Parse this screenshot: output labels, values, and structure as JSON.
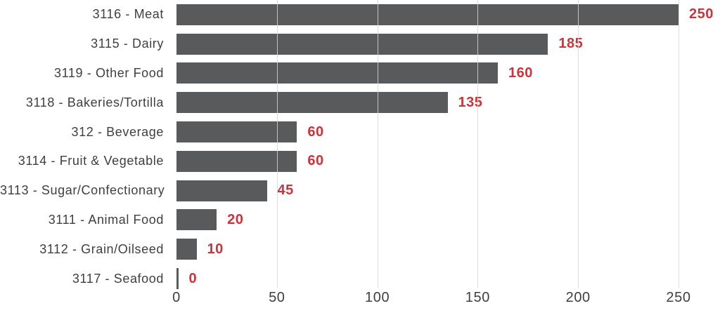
{
  "colors": {
    "background": "#ffffff",
    "bar": "#595a5c",
    "value_label": "#cb343b",
    "category_label": "#3e3f41",
    "tick_label": "#3e3f41",
    "gridline": "#d6d6d6"
  },
  "chart_data": {
    "type": "bar",
    "orientation": "horizontal",
    "title": "",
    "xlabel": "",
    "ylabel": "",
    "categories": [
      "3116 - Meat",
      "3115 - Dairy",
      "3119 - Other Food",
      "3118 - Bakeries/Tortilla",
      "312 - Beverage",
      "3114 - Fruit & Vegetable",
      "3113 - Sugar/Confectionary",
      "3111 - Animal Food",
      "3112 - Grain/Oilseed",
      "3117 - Seafood"
    ],
    "values": [
      250,
      185,
      160,
      135,
      60,
      60,
      45,
      20,
      10,
      0
    ],
    "value_labels": [
      "250",
      "185",
      "160",
      "135",
      "60",
      "60",
      "45",
      "20",
      "10",
      "0"
    ],
    "xlim": [
      0,
      250
    ],
    "xticks": [
      0,
      50,
      100,
      150,
      200,
      250
    ],
    "xtick_labels": [
      "0",
      "50",
      "100",
      "150",
      "200",
      "250"
    ],
    "grid": "vertical gridlines at 50-unit intervals, none at 0",
    "legend": "none",
    "data_labels": "shown at end of each bar in bold red"
  }
}
